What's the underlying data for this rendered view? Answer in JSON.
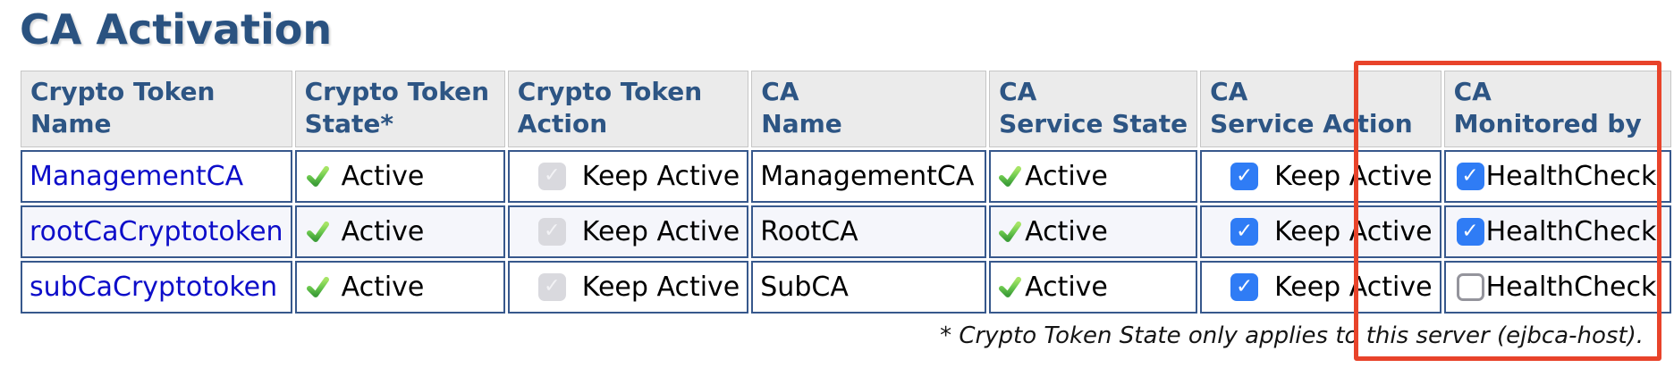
{
  "page": {
    "title": "CA Activation",
    "footnote": "* Crypto Token State only applies to this server (ejbca-host)."
  },
  "colors": {
    "heading_navy": "#2a5280",
    "header_bg_gray": "#ebebeb",
    "cell_border_blue": "#37588c",
    "alt_row_bg": "#f5f6fb",
    "checkbox_blue": "#2f7cf5",
    "disabled_checkbox_gray": "#d9d9de",
    "link_blue": "#0d0dc9",
    "status_tick_green": "#4aa53c",
    "highlight_red": "#e8432a"
  },
  "icons": {
    "active_tick": "green-glossy-tick-icon",
    "checked_box": "blue-checked-checkbox",
    "disabled_checked_box": "gray-disabled-checked-checkbox",
    "unchecked_box": "empty-checkbox"
  },
  "table": {
    "columns": [
      {
        "line1": "Crypto Token",
        "line2": "Name"
      },
      {
        "line1": "Crypto Token",
        "line2": "State*"
      },
      {
        "line1": "Crypto Token",
        "line2": "Action"
      },
      {
        "line1": "CA",
        "line2": "Name"
      },
      {
        "line1": "CA",
        "line2": "Service State"
      },
      {
        "line1": "CA",
        "line2": "Service Action"
      },
      {
        "line1": "CA",
        "line2": "Monitored by"
      }
    ],
    "rows": [
      {
        "crypto_token_name": "ManagementCA",
        "crypto_token_state": "Active",
        "crypto_token_action": {
          "checked": true,
          "disabled": true,
          "label": "Keep Active"
        },
        "ca_name": "ManagementCA",
        "ca_service_state": "Active",
        "ca_service_action": {
          "checked": true,
          "disabled": false,
          "label": "Keep Active"
        },
        "ca_monitored_by": {
          "checked": true,
          "disabled": false,
          "label": "HealthCheck"
        }
      },
      {
        "crypto_token_name": "rootCaCryptotoken",
        "crypto_token_state": "Active",
        "crypto_token_action": {
          "checked": true,
          "disabled": true,
          "label": "Keep Active"
        },
        "ca_name": "RootCA",
        "ca_service_state": "Active",
        "ca_service_action": {
          "checked": true,
          "disabled": false,
          "label": "Keep Active"
        },
        "ca_monitored_by": {
          "checked": true,
          "disabled": false,
          "label": "HealthCheck"
        }
      },
      {
        "crypto_token_name": "subCaCryptotoken",
        "crypto_token_state": "Active",
        "crypto_token_action": {
          "checked": true,
          "disabled": true,
          "label": "Keep Active"
        },
        "ca_name": "SubCA",
        "ca_service_state": "Active",
        "ca_service_action": {
          "checked": true,
          "disabled": false,
          "label": "Keep Active"
        },
        "ca_monitored_by": {
          "checked": false,
          "disabled": false,
          "label": "HealthCheck"
        }
      }
    ]
  }
}
